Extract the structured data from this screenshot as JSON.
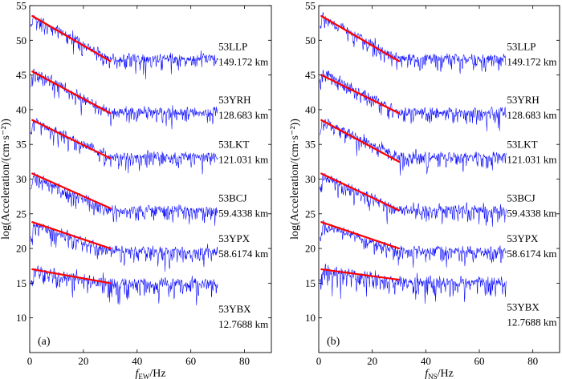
{
  "chart_data": [
    {
      "type": "line",
      "panel_tag": "(a)",
      "xlabel_main": "f",
      "xlabel_sub": "EW",
      "xlabel_unit": "/Hz",
      "ylabel": "log(Acceleration/(cm·s⁻²))",
      "xlim": [
        0,
        90
      ],
      "ylim": [
        5,
        55
      ],
      "xticks": [
        0,
        20,
        40,
        60,
        80
      ],
      "yticks": [
        10,
        15,
        20,
        25,
        30,
        35,
        40,
        45,
        50,
        55
      ],
      "series": [
        {
          "name": "53LLP",
          "distance": "149.172 km",
          "start": 53.5,
          "corner": 30,
          "slope": -0.21,
          "noise": 0.9,
          "end_freq": 70
        },
        {
          "name": "53YRH",
          "distance": "128.683 km",
          "start": 45.5,
          "corner": 30,
          "slope": -0.2,
          "noise": 0.9,
          "end_freq": 70
        },
        {
          "name": "53LKT",
          "distance": "121.031 km",
          "start": 38.5,
          "corner": 30,
          "slope": -0.18,
          "noise": 0.9,
          "end_freq": 70
        },
        {
          "name": "53BCJ",
          "distance": "59.4338 km",
          "start": 30.5,
          "corner": 30,
          "slope": -0.17,
          "noise": 0.9,
          "end_freq": 70
        },
        {
          "name": "53YPX",
          "distance": "58.6174 km",
          "start": 23.5,
          "corner": 30,
          "slope": -0.13,
          "noise": 0.9,
          "end_freq": 70
        },
        {
          "name": "53YBX",
          "distance": "12.7688 km",
          "start": 17.0,
          "corner": 30,
          "slope": -0.07,
          "noise": 1.1,
          "end_freq": 70
        }
      ],
      "fit_lines": [
        {
          "station": "53LLP",
          "x": [
            1,
            30
          ],
          "y": [
            53.5,
            47.0
          ]
        },
        {
          "station": "53YRH",
          "x": [
            1,
            30
          ],
          "y": [
            45.5,
            39.5
          ]
        },
        {
          "station": "53LKT",
          "x": [
            1,
            30
          ],
          "y": [
            38.5,
            33.0
          ]
        },
        {
          "station": "53BCJ",
          "x": [
            1,
            30
          ],
          "y": [
            30.8,
            25.8
          ]
        },
        {
          "station": "53YPX",
          "x": [
            1,
            30
          ],
          "y": [
            23.8,
            20.0
          ]
        },
        {
          "station": "53YBX",
          "x": [
            1,
            30
          ],
          "y": [
            17.0,
            15.0
          ]
        }
      ],
      "colors": {
        "spectrum": "#0000ff",
        "fit": "#ff0000"
      }
    },
    {
      "type": "line",
      "panel_tag": "(b)",
      "xlabel_main": "f",
      "xlabel_sub": "NS",
      "xlabel_unit": "/Hz",
      "ylabel": "log(Acceleration/(cm·s⁻²))",
      "xlim": [
        0,
        90
      ],
      "ylim": [
        5,
        55
      ],
      "xticks": [
        0,
        20,
        40,
        60,
        80
      ],
      "yticks": [
        10,
        15,
        20,
        25,
        30,
        35,
        40,
        45,
        50,
        55
      ],
      "series": [
        {
          "name": "53LLP",
          "distance": "149.172 km",
          "start": 53.5,
          "corner": 30,
          "slope": -0.21,
          "noise": 0.9,
          "end_freq": 70
        },
        {
          "name": "53YRH",
          "distance": "128.683 km",
          "start": 45.5,
          "corner": 30,
          "slope": -0.2,
          "noise": 0.9,
          "end_freq": 70
        },
        {
          "name": "53LKT",
          "distance": "121.031 km",
          "start": 38.5,
          "corner": 30,
          "slope": -0.18,
          "noise": 0.9,
          "end_freq": 70
        },
        {
          "name": "53BCJ",
          "distance": "59.4338 km",
          "start": 30.5,
          "corner": 30,
          "slope": -0.17,
          "noise": 0.9,
          "end_freq": 70
        },
        {
          "name": "53YPX",
          "distance": "58.6174 km",
          "start": 23.5,
          "corner": 30,
          "slope": -0.13,
          "noise": 0.9,
          "end_freq": 70
        },
        {
          "name": "53YBX",
          "distance": "12.7688 km",
          "start": 17.0,
          "corner": 30,
          "slope": -0.06,
          "noise": 1.1,
          "end_freq": 70
        }
      ],
      "fit_lines": [
        {
          "station": "53LLP",
          "x": [
            1,
            30
          ],
          "y": [
            53.5,
            47.0
          ]
        },
        {
          "station": "53YRH",
          "x": [
            1,
            30
          ],
          "y": [
            45.0,
            39.5
          ]
        },
        {
          "station": "53LKT",
          "x": [
            1,
            30
          ],
          "y": [
            38.5,
            32.5
          ]
        },
        {
          "station": "53BCJ",
          "x": [
            1,
            30
          ],
          "y": [
            30.8,
            25.5
          ]
        },
        {
          "station": "53YPX",
          "x": [
            1,
            30
          ],
          "y": [
            23.8,
            20.0
          ]
        },
        {
          "station": "53YBX",
          "x": [
            1,
            30
          ],
          "y": [
            17.0,
            15.5
          ]
        }
      ],
      "colors": {
        "spectrum": "#0000ff",
        "fit": "#ff0000"
      }
    }
  ]
}
